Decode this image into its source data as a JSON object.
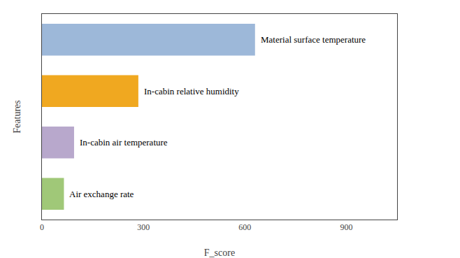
{
  "chart_data": {
    "type": "bar",
    "orientation": "horizontal",
    "categories": [
      "Material surface temperature",
      "In-cabin relative humidity",
      "In-cabin air temperature",
      "Air exchange rate"
    ],
    "values": [
      630,
      285,
      95,
      65
    ],
    "colors": [
      "#9db8d9",
      "#f0a820",
      "#b8a8cc",
      "#a0c878"
    ],
    "xlabel": "F_score",
    "ylabel": "Features",
    "xlim": [
      0,
      1050
    ],
    "xticks": [
      0,
      300,
      600,
      900
    ],
    "tick_labels": "x",
    "grid": false
  }
}
